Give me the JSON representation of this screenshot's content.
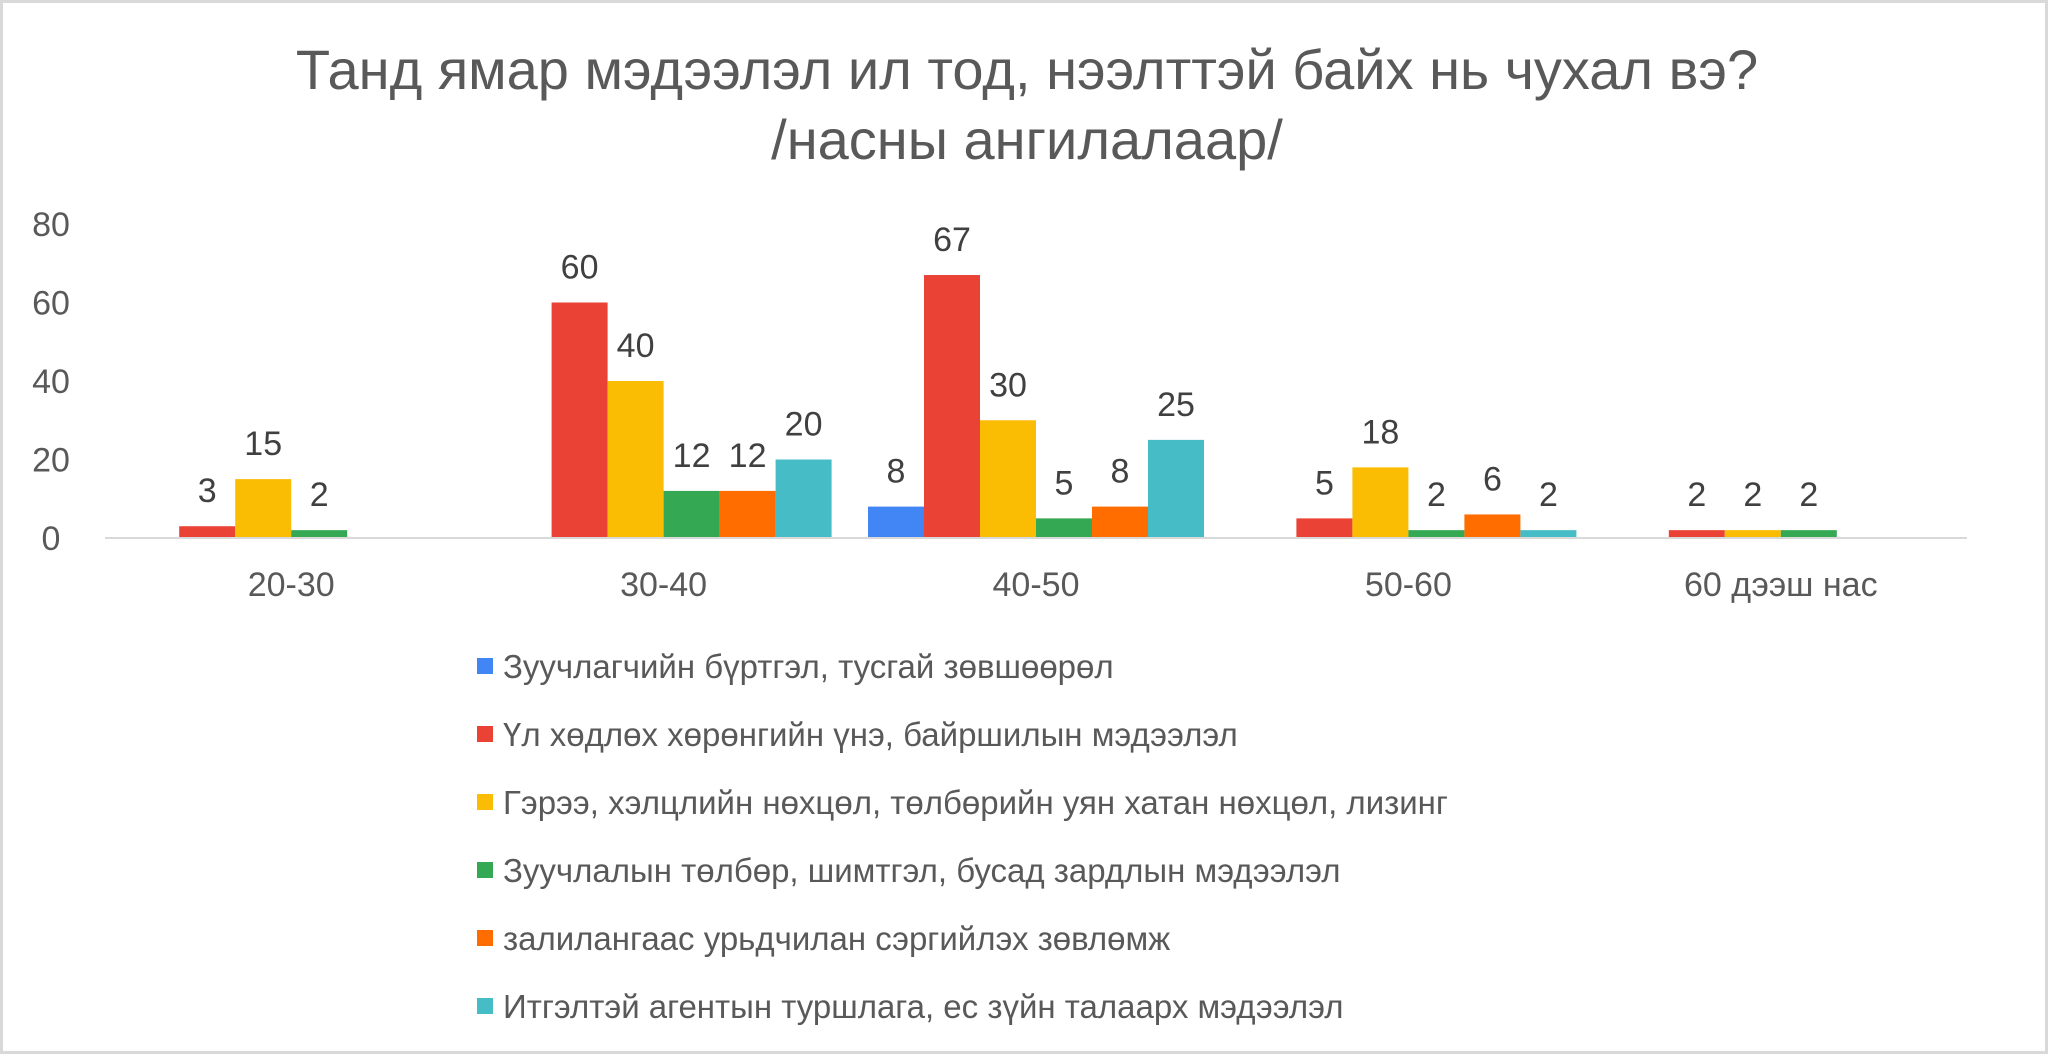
{
  "chart_data": {
    "type": "bar",
    "title": "Танд ямар мэдээлэл ил тод, нээлттэй байх нь чухал вэ?",
    "subtitle": "/насны ангилалаар/",
    "xlabel": "",
    "ylabel": "",
    "ylim": [
      0,
      80
    ],
    "yticks": [
      "0",
      "20",
      "40",
      "60",
      "80"
    ],
    "grid": false,
    "legend_position": "bottom",
    "categories": [
      "20-30",
      "30-40",
      "40-50",
      "50-60",
      "60 дээш нас"
    ],
    "series": [
      {
        "name": "Зуучлагчийн бүртгэл, тусгай зөвшөөрөл",
        "color": "#4285f4",
        "values": [
          null,
          null,
          8,
          null,
          null
        ]
      },
      {
        "name": "Үл хөдлөх хөрөнгийн үнэ, байршилын мэдээлэл",
        "color": "#ea4335",
        "values": [
          3,
          60,
          67,
          5,
          2
        ]
      },
      {
        "name": "Гэрээ, хэлцлийн нөхцөл, төлбөрийн уян хатан нөхцөл, лизинг",
        "color": "#fbbc04",
        "values": [
          15,
          40,
          30,
          18,
          2
        ]
      },
      {
        "name": "Зуучлалын төлбөр, шимтгэл, бусад зардлын мэдээлэл",
        "color": "#34a853",
        "values": [
          2,
          12,
          5,
          2,
          2
        ]
      },
      {
        "name": "залилангаас урьдчилан сэргийлэх зөвлөмж",
        "color": "#ff6d01",
        "values": [
          null,
          12,
          8,
          6,
          null
        ]
      },
      {
        "name": "Итгэлтэй агентын туршлага, ес зүйн талаарх мэдээлэл",
        "color": "#46bdc6",
        "values": [
          null,
          20,
          25,
          2,
          null
        ]
      }
    ]
  }
}
